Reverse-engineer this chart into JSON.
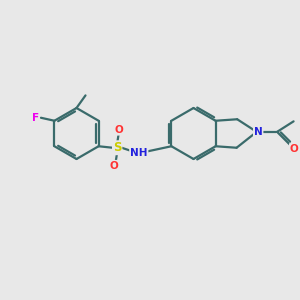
{
  "background_color": "#e8e8e8",
  "bond_color": "#3a6b6b",
  "atom_colors": {
    "F": "#ee00ee",
    "S": "#cccc00",
    "O": "#ff3333",
    "N": "#2222dd",
    "C": "#3a6b6b"
  },
  "figsize": [
    3.0,
    3.0
  ],
  "dpi": 100,
  "bond_lw": 1.6,
  "double_sep": 0.075,
  "double_shorten": 0.12,
  "font_size": 7.5
}
